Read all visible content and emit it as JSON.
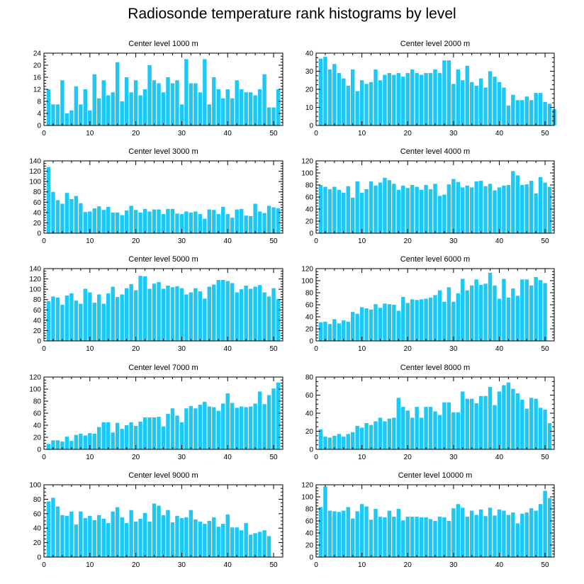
{
  "title": "Radiosonde temperature rank histograms by level",
  "colors": {
    "bar": "#1ec8f5",
    "axis": "#000000"
  },
  "chart_data": [
    {
      "type": "bar",
      "title": "Center level 1000 m",
      "xlim": [
        0,
        52
      ],
      "ylim": [
        0,
        24
      ],
      "xticks": [
        0,
        10,
        20,
        30,
        40,
        50
      ],
      "yticks": [
        0,
        4,
        8,
        12,
        16,
        20,
        24
      ],
      "values": [
        12,
        7,
        7,
        15,
        4,
        5,
        13,
        7,
        12,
        5,
        17,
        9,
        15,
        10,
        11,
        21,
        8,
        16,
        11,
        15,
        10,
        12,
        20,
        15,
        14,
        11,
        16,
        14,
        15,
        7,
        22,
        14,
        14,
        11,
        22,
        7,
        16,
        12,
        9,
        12,
        9,
        15,
        12,
        11,
        11,
        10,
        12,
        17,
        6,
        6,
        12
      ]
    },
    {
      "type": "bar",
      "title": "Center level 2000 m",
      "xlim": [
        0,
        52
      ],
      "ylim": [
        0,
        40
      ],
      "xticks": [
        0,
        10,
        20,
        30,
        40,
        50
      ],
      "yticks": [
        0,
        10,
        20,
        30,
        40
      ],
      "values": [
        37,
        38,
        31,
        34,
        29,
        26,
        22,
        31,
        19,
        25,
        23,
        24,
        31,
        25,
        28,
        29,
        28,
        29,
        27,
        29,
        31,
        29,
        28,
        29,
        29,
        31,
        29,
        36,
        36,
        23,
        31,
        25,
        33,
        24,
        22,
        26,
        21,
        30,
        27,
        24,
        21,
        11,
        17,
        14,
        14,
        16,
        14,
        18,
        18,
        13,
        12,
        9
      ]
    },
    {
      "type": "bar",
      "title": "Center level 3000 m",
      "xlim": [
        0,
        52
      ],
      "ylim": [
        0,
        140
      ],
      "xticks": [
        0,
        10,
        20,
        30,
        40,
        50
      ],
      "yticks": [
        0,
        20,
        40,
        60,
        80,
        100,
        120,
        140
      ],
      "values": [
        128,
        80,
        64,
        57,
        78,
        66,
        72,
        58,
        41,
        42,
        48,
        52,
        45,
        51,
        40,
        40,
        35,
        44,
        53,
        45,
        40,
        47,
        42,
        46,
        46,
        37,
        47,
        47,
        38,
        37,
        42,
        40,
        42,
        37,
        28,
        46,
        45,
        37,
        51,
        37,
        30,
        46,
        47,
        34,
        33,
        57,
        42,
        39,
        53,
        50,
        48
      ]
    },
    {
      "type": "bar",
      "title": "Center level 4000 m",
      "xlim": [
        0,
        52
      ],
      "ylim": [
        0,
        120
      ],
      "xticks": [
        0,
        10,
        20,
        30,
        40,
        50
      ],
      "yticks": [
        0,
        20,
        40,
        60,
        80,
        100,
        120
      ],
      "values": [
        80,
        77,
        73,
        77,
        72,
        67,
        78,
        59,
        86,
        67,
        73,
        86,
        79,
        84,
        92,
        88,
        82,
        72,
        79,
        75,
        80,
        77,
        72,
        80,
        73,
        82,
        62,
        64,
        81,
        90,
        85,
        76,
        79,
        76,
        86,
        87,
        78,
        82,
        71,
        76,
        79,
        80,
        103,
        96,
        80,
        81,
        87,
        66,
        93,
        84,
        77
      ]
    },
    {
      "type": "bar",
      "title": "Center level 5000 m",
      "xlim": [
        0,
        52
      ],
      "ylim": [
        0,
        140
      ],
      "xticks": [
        0,
        10,
        20,
        30,
        40,
        50
      ],
      "yticks": [
        0,
        20,
        40,
        60,
        80,
        100,
        120,
        140
      ],
      "values": [
        77,
        86,
        84,
        70,
        88,
        92,
        78,
        72,
        101,
        94,
        74,
        90,
        72,
        92,
        105,
        85,
        90,
        102,
        110,
        98,
        126,
        125,
        101,
        111,
        114,
        101,
        107,
        104,
        106,
        102,
        90,
        94,
        102,
        96,
        82,
        105,
        109,
        118,
        118,
        116,
        112,
        94,
        100,
        107,
        101,
        105,
        108,
        94,
        86,
        102,
        81
      ]
    },
    {
      "type": "bar",
      "title": "Center level 6000 m",
      "xlim": [
        0,
        52
      ],
      "ylim": [
        0,
        120
      ],
      "xticks": [
        0,
        10,
        20,
        30,
        40,
        50
      ],
      "yticks": [
        0,
        20,
        40,
        60,
        80,
        100,
        120
      ],
      "values": [
        31,
        32,
        28,
        36,
        29,
        34,
        32,
        48,
        45,
        56,
        54,
        52,
        61,
        55,
        62,
        61,
        60,
        50,
        73,
        63,
        69,
        68,
        69,
        70,
        72,
        76,
        84,
        65,
        89,
        65,
        79,
        103,
        84,
        92,
        102,
        93,
        95,
        113,
        92,
        70,
        103,
        72,
        87,
        75,
        102,
        102,
        92,
        106,
        101,
        96
      ]
    },
    {
      "type": "bar",
      "title": "Center level 7000 m",
      "xlim": [
        0,
        52
      ],
      "ylim": [
        0,
        120
      ],
      "xticks": [
        0,
        10,
        20,
        30,
        40,
        50
      ],
      "yticks": [
        0,
        20,
        40,
        60,
        80,
        100,
        120
      ],
      "values": [
        9,
        15,
        15,
        13,
        21,
        14,
        24,
        26,
        23,
        27,
        26,
        37,
        45,
        45,
        28,
        44,
        34,
        40,
        45,
        39,
        46,
        53,
        53,
        53,
        54,
        38,
        59,
        68,
        56,
        45,
        68,
        72,
        68,
        74,
        79,
        71,
        70,
        64,
        76,
        93,
        77,
        69,
        71,
        70,
        71,
        76,
        96,
        75,
        90,
        101,
        111
      ]
    },
    {
      "type": "bar",
      "title": "Center level 8000 m",
      "xlim": [
        0,
        52
      ],
      "ylim": [
        0,
        80
      ],
      "xticks": [
        0,
        10,
        20,
        30,
        40,
        50
      ],
      "yticks": [
        0,
        20,
        40,
        60,
        80
      ],
      "values": [
        22,
        14,
        13,
        15,
        17,
        14,
        17,
        19,
        26,
        24,
        29,
        27,
        31,
        35,
        31,
        34,
        35,
        57,
        47,
        43,
        35,
        47,
        35,
        47,
        47,
        42,
        38,
        52,
        52,
        41,
        41,
        64,
        56,
        56,
        51,
        59,
        59,
        69,
        49,
        64,
        71,
        74,
        67,
        62,
        55,
        45,
        57,
        56,
        46,
        44,
        29
      ]
    },
    {
      "type": "bar",
      "title": "Center level 9000 m",
      "xlim": [
        0,
        52
      ],
      "ylim": [
        0,
        100
      ],
      "xticks": [
        0,
        10,
        20,
        30,
        40,
        50
      ],
      "yticks": [
        0,
        20,
        40,
        60,
        80,
        100
      ],
      "values": [
        77,
        82,
        70,
        58,
        57,
        63,
        45,
        63,
        54,
        57,
        51,
        58,
        53,
        47,
        63,
        69,
        55,
        47,
        65,
        49,
        53,
        61,
        49,
        74,
        71,
        58,
        65,
        48,
        57,
        54,
        55,
        65,
        52,
        49,
        46,
        50,
        55,
        42,
        46,
        59,
        41,
        41,
        37,
        47,
        31,
        33,
        35,
        37,
        29
      ]
    },
    {
      "type": "bar",
      "title": "Center level 10000 m",
      "xlim": [
        0,
        52
      ],
      "ylim": [
        0,
        120
      ],
      "xticks": [
        0,
        10,
        20,
        30,
        40,
        50
      ],
      "yticks": [
        0,
        20,
        40,
        60,
        80,
        100,
        120
      ],
      "values": [
        83,
        117,
        77,
        76,
        75,
        77,
        83,
        64,
        76,
        88,
        84,
        62,
        80,
        67,
        66,
        77,
        67,
        80,
        61,
        67,
        67,
        67,
        66,
        66,
        63,
        60,
        67,
        66,
        60,
        81,
        88,
        82,
        67,
        77,
        70,
        79,
        68,
        82,
        69,
        79,
        77,
        70,
        74,
        56,
        72,
        74,
        81,
        77,
        88,
        110,
        98
      ]
    }
  ]
}
